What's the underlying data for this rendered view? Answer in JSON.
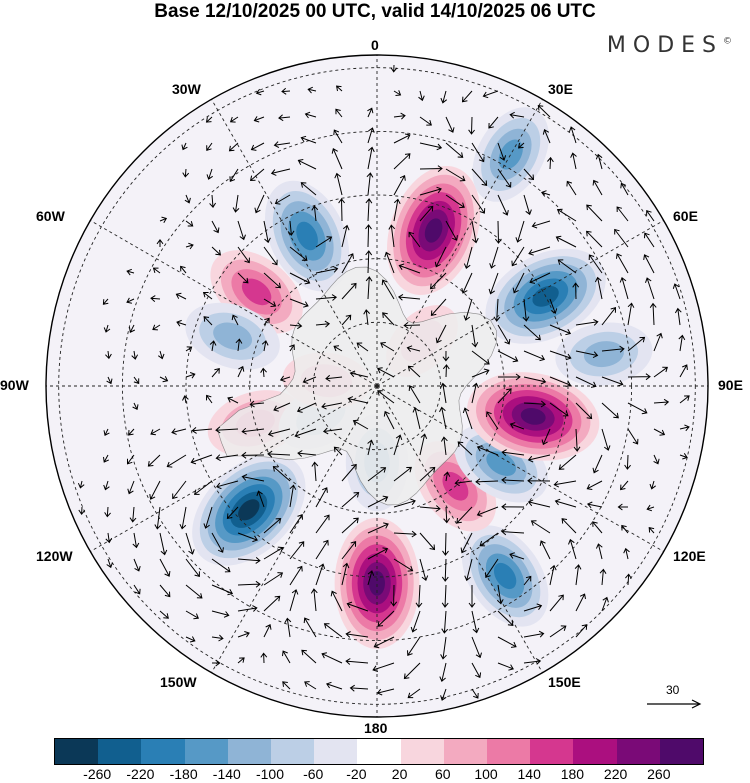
{
  "title": "Base 12/10/2025 00 UTC, valid 14/10/2025 06 UTC",
  "brand": {
    "name": "MODES",
    "mark": "©"
  },
  "longitude_labels": {
    "lon_0": "0",
    "lon_30e": "30E",
    "lon_60e": "60E",
    "lon_90e": "90E",
    "lon_120e": "120E",
    "lon_150e": "150E",
    "lon_180": "180",
    "lon_150w": "150W",
    "lon_120w": "120W",
    "lon_90w": "90W",
    "lon_60w": "60W",
    "lon_30w": "30W"
  },
  "reference_vector": {
    "label": "30"
  },
  "colorbar": {
    "colors": [
      "#0b3857",
      "#115f8f",
      "#2a7fb5",
      "#5699c6",
      "#8fb4d6",
      "#bccfe6",
      "#e3e4f1",
      "#ffffff",
      "#f8d6de",
      "#f3aac0",
      "#ec7aa6",
      "#d5378f",
      "#ab0f7f",
      "#7a0a77",
      "#4f0a6a"
    ],
    "tick_labels": [
      "-260",
      "-220",
      "-180",
      "-140",
      "-100",
      "-60",
      "-20",
      "20",
      "60",
      "100",
      "140",
      "180",
      "220",
      "260"
    ]
  },
  "anomaly_centers": [
    {
      "lon": -46,
      "colat": 28,
      "value": -240
    },
    {
      "lon": 0,
      "colat": 31,
      "value": 230
    },
    {
      "lon": 34,
      "colat": 36,
      "value": -150
    },
    {
      "lon": 0,
      "colat": 12,
      "value": -90
    },
    {
      "lon": 38,
      "colat": 20,
      "value": 110
    },
    {
      "lon": 58,
      "colat": 23,
      "value": -110
    },
    {
      "lon": -73,
      "colat": 20,
      "value": 90
    },
    {
      "lon": -62,
      "colat": 10,
      "value": -60
    },
    {
      "lon": 79,
      "colat": 25,
      "value": 240
    },
    {
      "lon": 98,
      "colat": 36,
      "value": -90
    },
    {
      "lon": 118,
      "colat": 30,
      "value": -220
    },
    {
      "lon": 160,
      "colat": 26,
      "value": 240
    },
    {
      "lon": -155,
      "colat": 26,
      "value": -170
    },
    {
      "lon": -128,
      "colat": 24,
      "value": 120
    },
    {
      "lon": -109,
      "colat": 24,
      "value": -90
    },
    {
      "lon": 150,
      "colat": 42,
      "value": -110
    },
    {
      "lon": -96,
      "colat": 8,
      "value": 50
    },
    {
      "lon": 135,
      "colat": 10,
      "value": 40
    }
  ]
}
